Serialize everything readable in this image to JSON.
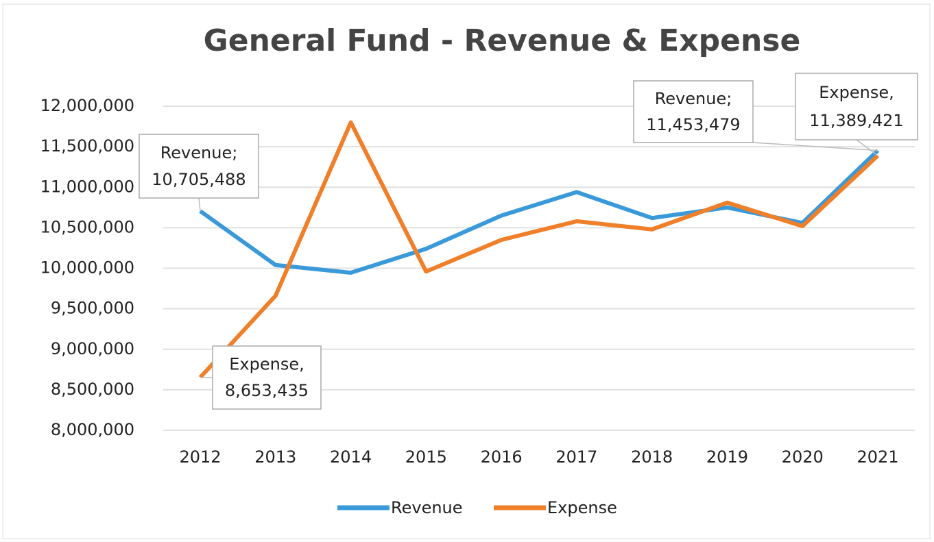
{
  "chart_data": {
    "type": "line",
    "title": "General Fund - Revenue & Expense",
    "categories": [
      "2012",
      "2013",
      "2014",
      "2015",
      "2016",
      "2017",
      "2018",
      "2019",
      "2020",
      "2021"
    ],
    "series": [
      {
        "name": "Revenue",
        "color": "#3a9ad9",
        "label_name": "Revenue;",
        "values": [
          10705488,
          10040000,
          9945000,
          10240000,
          10650000,
          10940000,
          10620000,
          10750000,
          10560000,
          11453479
        ],
        "value_labels": [
          "10,705,488",
          null,
          null,
          null,
          null,
          null,
          null,
          null,
          null,
          "11,453,479"
        ]
      },
      {
        "name": "Expense",
        "color": "#f07f2a",
        "label_name": "Expense,",
        "values": [
          8653435,
          9660000,
          11800000,
          9960000,
          10350000,
          10580000,
          10480000,
          10810000,
          10520000,
          11389421
        ],
        "value_labels": [
          "8,653,435",
          null,
          null,
          null,
          null,
          null,
          null,
          null,
          null,
          "11,389,421"
        ]
      }
    ],
    "ylim": [
      8000000,
      12000000
    ],
    "yticks": [
      {
        "value": 8000000,
        "label": "8,000,000"
      },
      {
        "value": 8500000,
        "label": "8,500,000"
      },
      {
        "value": 9000000,
        "label": "9,000,000"
      },
      {
        "value": 9500000,
        "label": "9,500,000"
      },
      {
        "value": 10000000,
        "label": "10,000,000"
      },
      {
        "value": 10500000,
        "label": "10,500,000"
      },
      {
        "value": 11000000,
        "label": "11,000,000"
      },
      {
        "value": 11500000,
        "label": "11,500,000"
      },
      {
        "value": 12000000,
        "label": "12,000,000"
      }
    ],
    "grid": true,
    "legend": "bottom"
  }
}
